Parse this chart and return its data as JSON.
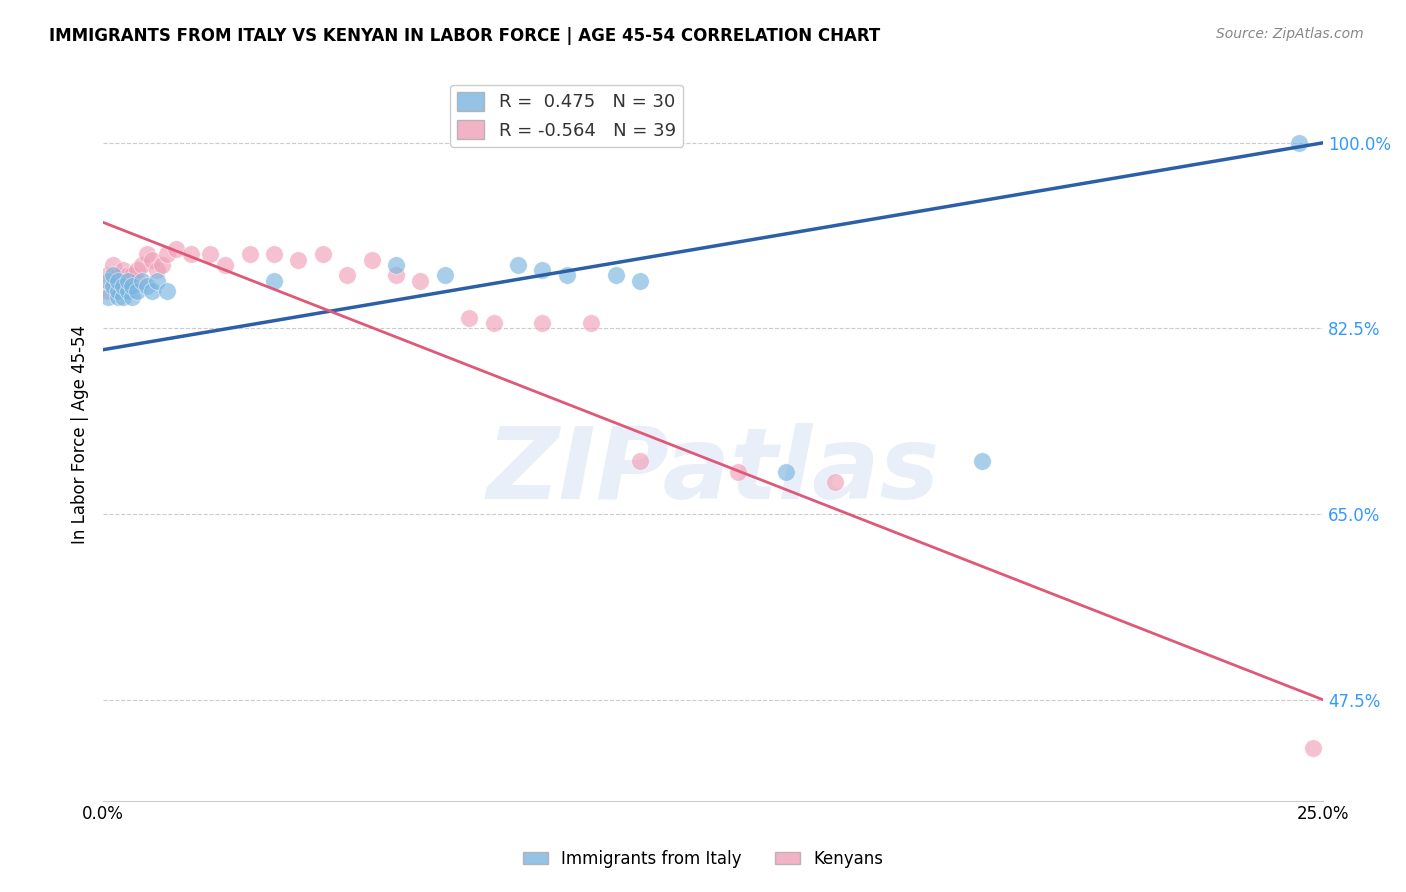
{
  "title": "IMMIGRANTS FROM ITALY VS KENYAN IN LABOR FORCE | AGE 45-54 CORRELATION CHART",
  "source": "Source: ZipAtlas.com",
  "ylabel": "In Labor Force | Age 45-54",
  "xlim": [
    0.0,
    0.25
  ],
  "ylim": [
    0.38,
    1.07
  ],
  "xticks": [
    0.0,
    0.05,
    0.1,
    0.15,
    0.2,
    0.25
  ],
  "xticklabels": [
    "0.0%",
    "",
    "",
    "",
    "",
    "25.0%"
  ],
  "ytick_positions": [
    0.475,
    0.65,
    0.825,
    1.0
  ],
  "yticklabels": [
    "47.5%",
    "65.0%",
    "82.5%",
    "100.0%"
  ],
  "italy_R": 0.475,
  "italy_N": 30,
  "kenyan_R": -0.564,
  "kenyan_N": 39,
  "italy_color": "#7ab5e0",
  "kenyan_color": "#f0a0b8",
  "italy_line_color": "#2b5fa8",
  "kenyan_line_color": "#e05878",
  "background_color": "#ffffff",
  "grid_color": "#cccccc",
  "watermark": "ZIPatlas",
  "italy_x": [
    0.001,
    0.001,
    0.002,
    0.002,
    0.003,
    0.003,
    0.003,
    0.004,
    0.004,
    0.005,
    0.005,
    0.006,
    0.006,
    0.007,
    0.008,
    0.009,
    0.01,
    0.011,
    0.013,
    0.035,
    0.06,
    0.07,
    0.085,
    0.09,
    0.095,
    0.105,
    0.11,
    0.14,
    0.18,
    0.245
  ],
  "italy_y": [
    0.855,
    0.87,
    0.865,
    0.875,
    0.855,
    0.86,
    0.87,
    0.855,
    0.865,
    0.86,
    0.87,
    0.855,
    0.865,
    0.86,
    0.87,
    0.865,
    0.86,
    0.87,
    0.86,
    0.87,
    0.885,
    0.875,
    0.885,
    0.88,
    0.875,
    0.875,
    0.87,
    0.69,
    0.7,
    1.0
  ],
  "kenyan_x": [
    0.001,
    0.001,
    0.002,
    0.002,
    0.003,
    0.003,
    0.004,
    0.004,
    0.005,
    0.005,
    0.006,
    0.007,
    0.007,
    0.008,
    0.009,
    0.01,
    0.011,
    0.012,
    0.013,
    0.015,
    0.018,
    0.022,
    0.025,
    0.03,
    0.035,
    0.04,
    0.045,
    0.05,
    0.055,
    0.06,
    0.065,
    0.075,
    0.08,
    0.09,
    0.1,
    0.11,
    0.13,
    0.15,
    0.248
  ],
  "kenyan_y": [
    0.86,
    0.875,
    0.87,
    0.885,
    0.86,
    0.875,
    0.87,
    0.88,
    0.865,
    0.875,
    0.875,
    0.87,
    0.88,
    0.885,
    0.895,
    0.89,
    0.88,
    0.885,
    0.895,
    0.9,
    0.895,
    0.895,
    0.885,
    0.895,
    0.895,
    0.89,
    0.895,
    0.875,
    0.89,
    0.875,
    0.87,
    0.835,
    0.83,
    0.83,
    0.83,
    0.7,
    0.69,
    0.68,
    0.43
  ]
}
